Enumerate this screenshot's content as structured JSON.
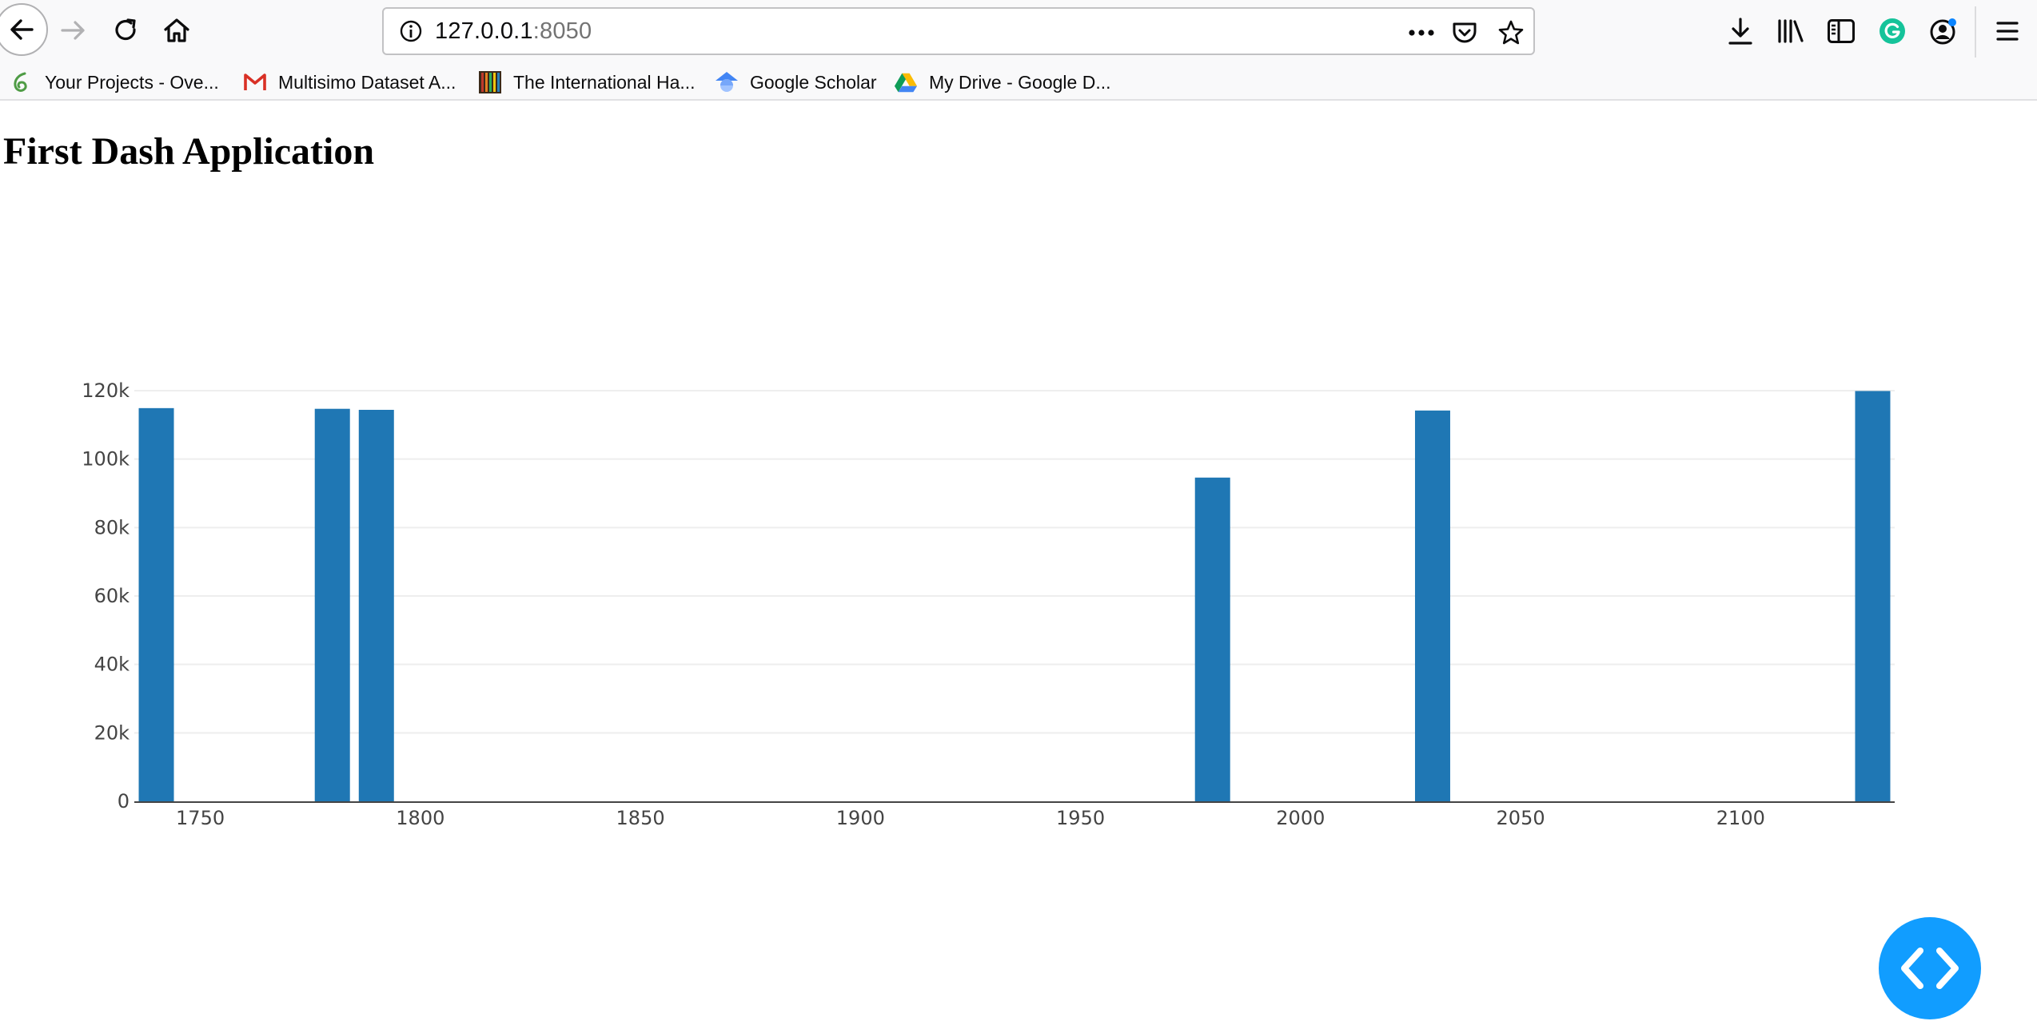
{
  "browser": {
    "url_host": "127.0.0.1",
    "url_port": ":8050",
    "bookmarks": [
      {
        "label": "Your Projects - Ove...",
        "icon": "overleaf-icon"
      },
      {
        "label": "Multisimo Dataset A...",
        "icon": "gmail-icon"
      },
      {
        "label": "The International Ha...",
        "icon": "striped-book-icon"
      },
      {
        "label": "Google Scholar",
        "icon": "google-scholar-icon"
      },
      {
        "label": "My Drive - Google D...",
        "icon": "google-drive-icon"
      }
    ],
    "grammarly_color": "#15c39a",
    "accent": "#0a84ff"
  },
  "page": {
    "title": "First Dash Application"
  },
  "chart_data": {
    "type": "bar",
    "x": [
      1740,
      1780,
      1790,
      1980,
      2030,
      2130
    ],
    "values": [
      114900,
      114700,
      114400,
      94600,
      114200,
      119900
    ],
    "xlim": [
      1735,
      2135
    ],
    "ylim": [
      0,
      120000
    ],
    "x_ticks": [
      1750,
      1800,
      1850,
      1900,
      1950,
      2000,
      2050,
      2100
    ],
    "y_ticks": [
      0,
      20000,
      40000,
      60000,
      80000,
      100000,
      120000
    ],
    "y_tick_labels": [
      "0",
      "20k",
      "40k",
      "60k",
      "80k",
      "100k",
      "120k"
    ],
    "bar_color": "#1f77b4",
    "grid": true,
    "title": "",
    "xlabel": "",
    "ylabel": ""
  },
  "fab": {
    "icon": "code-brackets-icon",
    "color": "#119dff"
  }
}
